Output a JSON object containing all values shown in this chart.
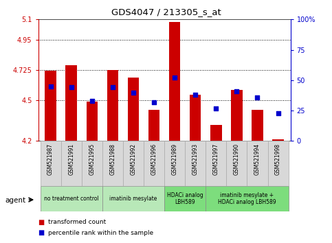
{
  "title": "GDS4047 / 213305_s_at",
  "samples": [
    "GSM521987",
    "GSM521991",
    "GSM521995",
    "GSM521988",
    "GSM521992",
    "GSM521996",
    "GSM521989",
    "GSM521993",
    "GSM521997",
    "GSM521990",
    "GSM521994",
    "GSM521998"
  ],
  "transformed_count": [
    4.72,
    4.76,
    4.49,
    4.725,
    4.67,
    4.43,
    5.08,
    4.54,
    4.32,
    4.58,
    4.43,
    4.21
  ],
  "percentile_rank": [
    45,
    44,
    33,
    44,
    40,
    32,
    52,
    38,
    27,
    41,
    36,
    23
  ],
  "ymin": 4.2,
  "ymax": 5.1,
  "yticks": [
    4.2,
    4.5,
    4.725,
    4.95,
    5.1
  ],
  "ytick_labels": [
    "4.2",
    "4.5",
    "4.725",
    "4.95",
    "5.1"
  ],
  "right_yticks": [
    0,
    25,
    50,
    75,
    100
  ],
  "right_ytick_labels": [
    "0",
    "25",
    "50",
    "75",
    "100%"
  ],
  "bar_color": "#cc0000",
  "dot_color": "#0000cc",
  "group_starts": [
    0,
    3,
    6,
    8
  ],
  "group_ends": [
    3,
    6,
    8,
    12
  ],
  "group_labels": [
    "no treatment control",
    "imatinib mesylate",
    "HDACi analog\nLBH589",
    "imatinib mesylate +\nHDACi analog LBH589"
  ],
  "group_colors": [
    "#b8e8b8",
    "#b8e8b8",
    "#7ddd7d",
    "#7ddd7d"
  ],
  "dotted_lines": [
    4.5,
    4.725,
    4.95
  ],
  "bar_width": 0.55,
  "agent_label": "agent",
  "legend_bar": "transformed count",
  "legend_dot": "percentile rank within the sample",
  "left_axis_color": "#cc0000",
  "right_axis_color": "#0000cc",
  "sample_box_color": "#d8d8d8"
}
